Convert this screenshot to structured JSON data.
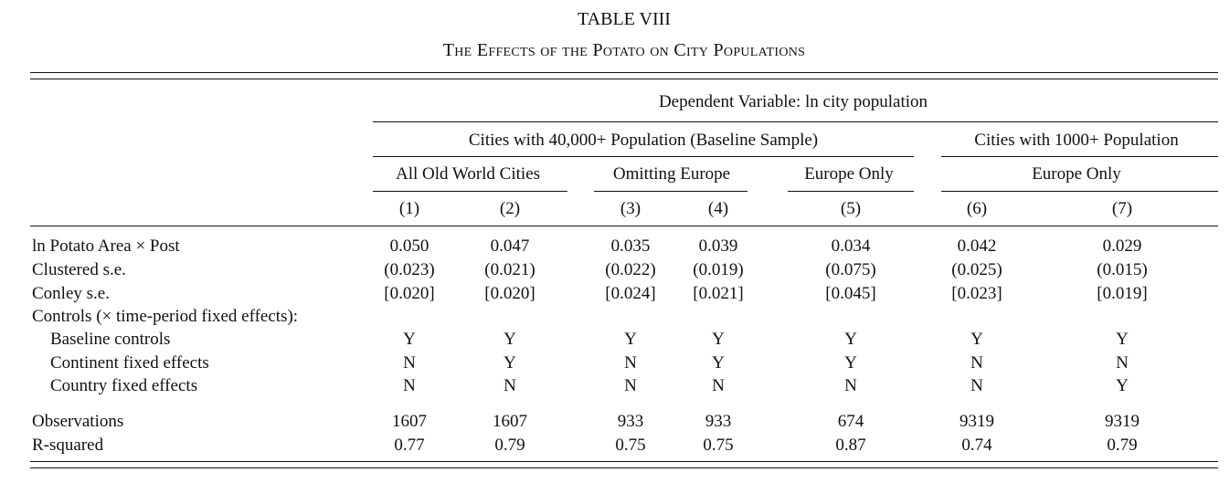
{
  "table": {
    "number": "TABLE VIII",
    "title": "The Effects of the Potato on City Populations",
    "header": {
      "dependent_variable": "Dependent Variable: ln city population",
      "groups": [
        "Cities with 40,000+ Population (Baseline Sample)",
        "Cities with 1000+ Population"
      ],
      "subgroups": [
        "All Old World Cities",
        "Omitting Europe",
        "Europe Only",
        "Europe Only"
      ],
      "columns": [
        "(1)",
        "(2)",
        "(3)",
        "(4)",
        "(5)",
        "(6)",
        "(7)"
      ]
    },
    "rows": [
      {
        "label": "ln Potato Area × Post",
        "values": [
          "0.050",
          "0.047",
          "0.035",
          "0.039",
          "0.034",
          "0.042",
          "0.029"
        ]
      },
      {
        "label": "Clustered s.e.",
        "values": [
          "(0.023)",
          "(0.021)",
          "(0.022)",
          "(0.019)",
          "(0.075)",
          "(0.025)",
          "(0.015)"
        ]
      },
      {
        "label": "Conley s.e.",
        "values": [
          "[0.020]",
          "[0.020]",
          "[0.024]",
          "[0.021]",
          "[0.045]",
          "[0.023]",
          "[0.019]"
        ]
      },
      {
        "label": "Controls (× time-period fixed effects):",
        "values": []
      },
      {
        "label": "Baseline controls",
        "values": [
          "Y",
          "Y",
          "Y",
          "Y",
          "Y",
          "Y",
          "Y"
        ]
      },
      {
        "label": "Continent fixed effects",
        "values": [
          "N",
          "Y",
          "N",
          "Y",
          "Y",
          "N",
          "N"
        ]
      },
      {
        "label": "Country fixed effects",
        "values": [
          "N",
          "N",
          "N",
          "N",
          "N",
          "N",
          "Y"
        ]
      },
      {
        "label": "Observations",
        "values": [
          "1607",
          "1607",
          "933",
          "933",
          "674",
          "9319",
          "9319"
        ]
      },
      {
        "label": "R-squared",
        "values": [
          "0.77",
          "0.79",
          "0.75",
          "0.75",
          "0.87",
          "0.74",
          "0.79"
        ]
      }
    ]
  }
}
